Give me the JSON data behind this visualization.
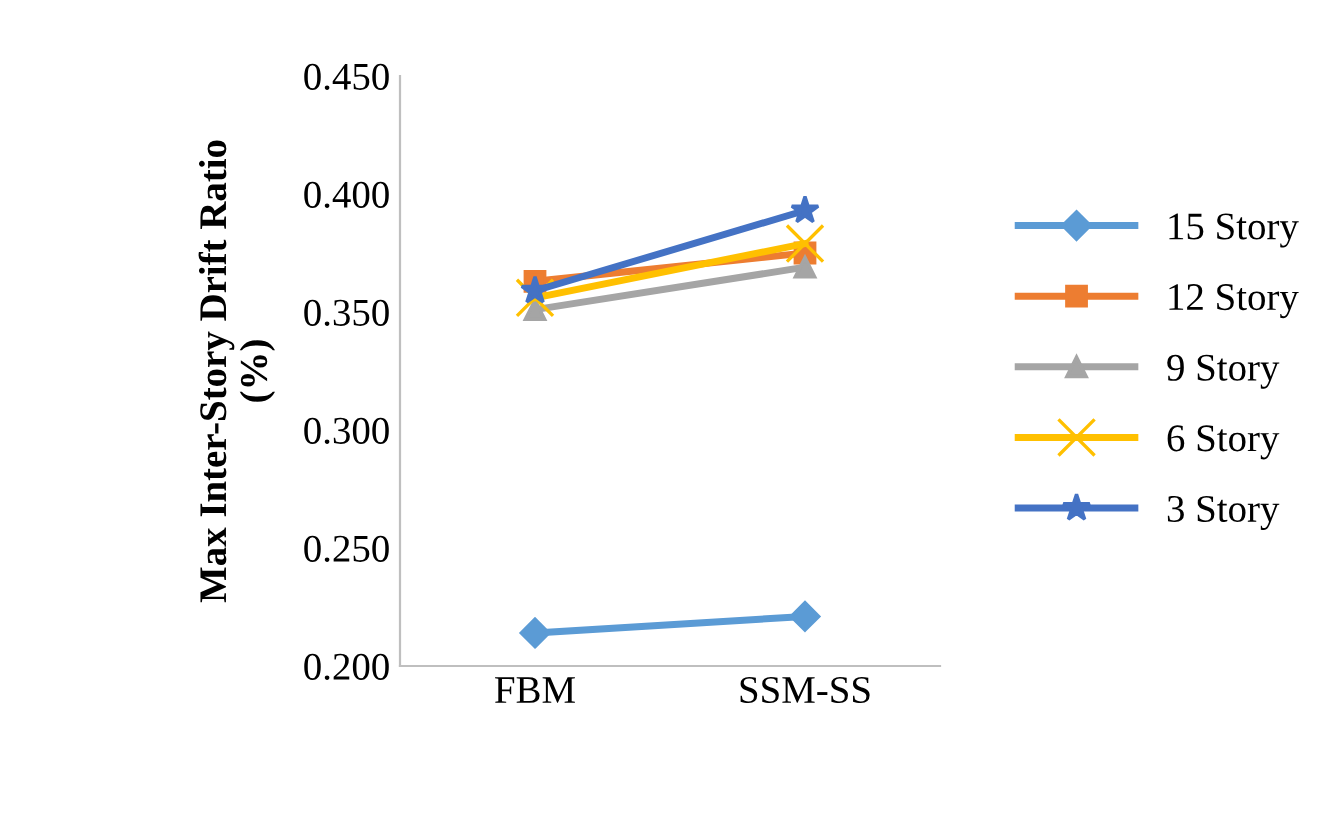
{
  "chart_data": {
    "type": "line",
    "ylabel": "Max Inter-Story Drift Ratio\n(%)",
    "categories": [
      "FBM",
      "SSM-SS"
    ],
    "series": [
      {
        "name": "15 Story",
        "color": "#5b9bd5",
        "marker": "diamond",
        "values": [
          0.214,
          0.221
        ]
      },
      {
        "name": "12 Story",
        "color": "#ed7d31",
        "marker": "square",
        "values": [
          0.363,
          0.375
        ]
      },
      {
        "name": "9 Story",
        "color": "#a5a5a5",
        "marker": "triangle",
        "values": [
          0.351,
          0.369
        ]
      },
      {
        "name": "6 Story",
        "color": "#ffc000",
        "marker": "cross",
        "values": [
          0.356,
          0.379
        ]
      },
      {
        "name": "3 Story",
        "color": "#4472c4",
        "marker": "star",
        "values": [
          0.359,
          0.393
        ]
      }
    ],
    "ylim": [
      0.2,
      0.45
    ],
    "yticks": [
      {
        "value": 0.2,
        "label": "0.200"
      },
      {
        "value": 0.25,
        "label": "0.250"
      },
      {
        "value": 0.3,
        "label": "0.300"
      },
      {
        "value": 0.35,
        "label": "0.350"
      },
      {
        "value": 0.4,
        "label": "0.400"
      },
      {
        "value": 0.45,
        "label": "0.450"
      }
    ],
    "grid": false,
    "legend": "right"
  }
}
